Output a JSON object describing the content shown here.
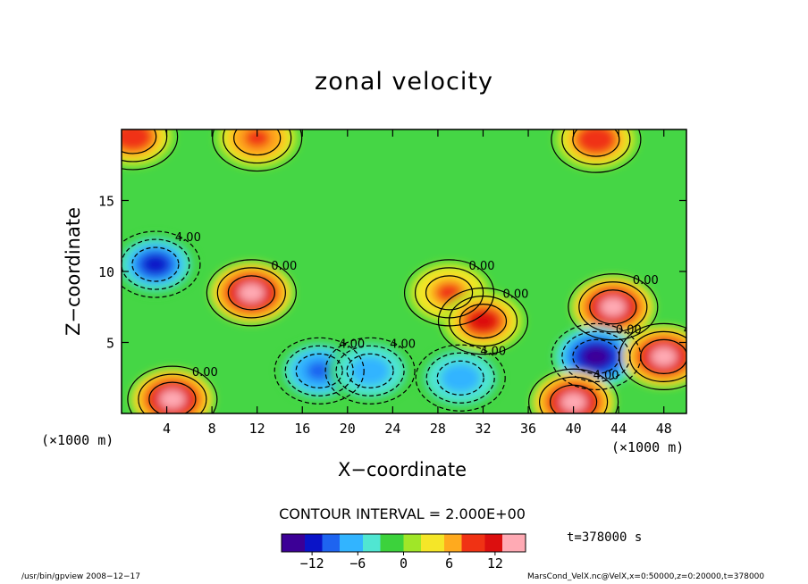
{
  "chart_data": {
    "type": "heatmap",
    "title": "zonal velocity",
    "xlabel": "X−coordinate",
    "ylabel": "Z−coordinate",
    "x_unit_left": "(×1000 m)",
    "x_unit_right": "(×1000 m)",
    "xlim": [
      0,
      50
    ],
    "ylim": [
      0,
      20
    ],
    "x_ticks": [
      4,
      8,
      12,
      16,
      20,
      24,
      28,
      32,
      36,
      40,
      44,
      48
    ],
    "y_ticks": [
      5,
      10,
      15
    ],
    "contour_interval_text": "CONTOUR INTERVAL = 2.000E+00",
    "contour_labels": [
      "4.00",
      "0.00",
      "4.00",
      "0.00",
      "0.00",
      "0.00",
      "0.00",
      "0.00",
      "4.00",
      "4.00",
      "0.00",
      "0.00",
      "0.00",
      "4.00",
      "4.00"
    ],
    "colorbar": {
      "range": [
        -16,
        16
      ],
      "ticks": [
        -12,
        -6,
        0,
        6,
        12
      ],
      "colors": [
        "#3c0096",
        "#0a14c8",
        "#1e64f0",
        "#32b4ff",
        "#50e6d2",
        "#3cd23c",
        "#a0e628",
        "#f5e628",
        "#ffaa1e",
        "#f03214",
        "#dc0f0f",
        "#ffaab4"
      ]
    },
    "features": [
      {
        "x": 3.0,
        "z": 10.5,
        "value": -13,
        "label": "negative"
      },
      {
        "x": 11.5,
        "z": 8.5,
        "value": 14,
        "label": "positive"
      },
      {
        "x": 17.5,
        "z": 3.0,
        "value": -10,
        "label": "negative"
      },
      {
        "x": 29.0,
        "z": 8.5,
        "value": 8,
        "label": "positive"
      },
      {
        "x": 32.0,
        "z": 6.5,
        "value": 12,
        "label": "positive"
      },
      {
        "x": 43.5,
        "z": 7.5,
        "value": 14,
        "label": "positive"
      },
      {
        "x": 42.0,
        "z": 4.0,
        "value": -14,
        "label": "negative"
      },
      {
        "x": 4.5,
        "z": 1.0,
        "value": 16,
        "label": "positive"
      },
      {
        "x": 40.0,
        "z": 0.8,
        "value": 16,
        "label": "positive"
      },
      {
        "x": 48.0,
        "z": 4.0,
        "value": 14,
        "label": "positive"
      },
      {
        "x": 1.0,
        "z": 19.5,
        "value": 10,
        "label": "positive"
      },
      {
        "x": 12.0,
        "z": 19.4,
        "value": 9,
        "label": "positive"
      },
      {
        "x": 42.0,
        "z": 19.3,
        "value": 10,
        "label": "positive"
      },
      {
        "x": 22.0,
        "z": 3.0,
        "value": -8,
        "label": "negative"
      },
      {
        "x": 30.0,
        "z": 2.5,
        "value": -8,
        "label": "negative"
      }
    ]
  },
  "annotation": {
    "time": "t=378000  s",
    "footer_left": "/usr/bin/gpview  2008−12−17",
    "footer_right": "MarsCond_VelX.nc@VelX,x=0:50000,z=0:20000,t=378000"
  },
  "colors": {
    "background": "#ffffff",
    "frame": "#000000",
    "base_field": "#45d645"
  }
}
